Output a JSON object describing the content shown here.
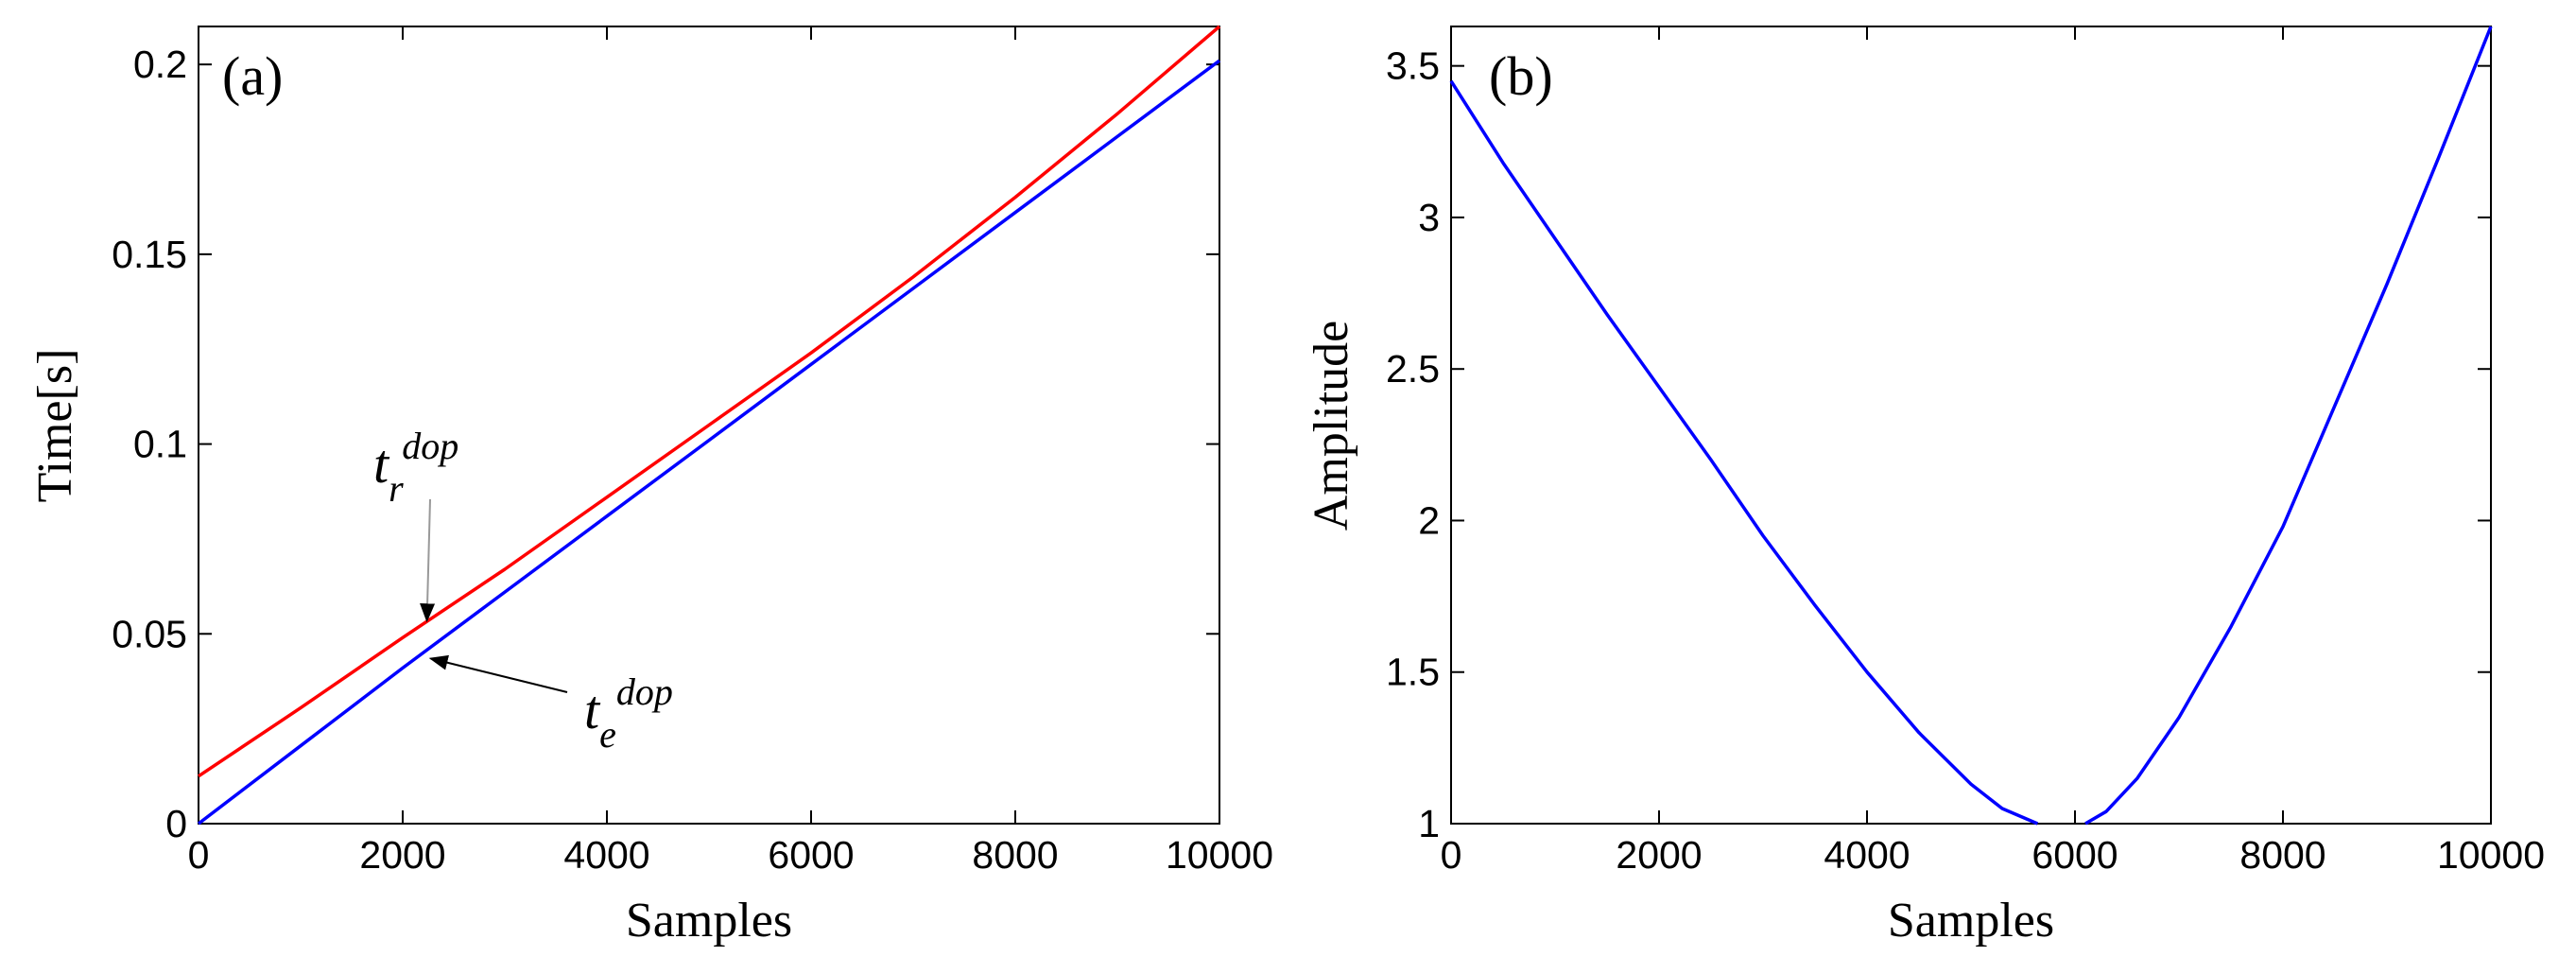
{
  "chart_data": [
    {
      "type": "line",
      "panel_label": "(a)",
      "xlabel": "Samples",
      "ylabel": "Time[s]",
      "xlim": [
        0,
        10000
      ],
      "ylim": [
        0,
        0.21
      ],
      "xticks": [
        0,
        2000,
        4000,
        6000,
        8000,
        10000
      ],
      "xtick_labels": [
        "0",
        "2000",
        "4000",
        "6000",
        "8000",
        "10000"
      ],
      "yticks": [
        0,
        0.05,
        0.1,
        0.15,
        0.2
      ],
      "ytick_labels": [
        "0",
        "0.05",
        "0.1",
        "0.15",
        "0.2"
      ],
      "grid": false,
      "series": [
        {
          "color": "#ff0000",
          "x": [
            0,
            1000,
            2000,
            3000,
            4000,
            5000,
            6000,
            7000,
            8000,
            9000,
            10000
          ],
          "y": [
            0.0125,
            0.0305,
            0.049,
            0.067,
            0.086,
            0.105,
            0.124,
            0.144,
            0.165,
            0.187,
            0.21
          ]
        },
        {
          "color": "#0000ff",
          "x": [
            0,
            1000,
            2000,
            3000,
            4000,
            5000,
            6000,
            7000,
            8000,
            9000,
            10000
          ],
          "y": [
            0.0,
            0.0205,
            0.041,
            0.061,
            0.081,
            0.101,
            0.121,
            0.141,
            0.161,
            0.181,
            0.201
          ]
        }
      ],
      "annotations": [
        {
          "base": "t",
          "sub": "r",
          "sup": "dop",
          "arrow_to": [
            2200,
            0.052
          ]
        },
        {
          "base": "t",
          "sub": "e",
          "sup": "dop",
          "arrow_to": [
            2200,
            0.044
          ]
        }
      ]
    },
    {
      "type": "line",
      "panel_label": "(b)",
      "xlabel": "Samples",
      "ylabel": "Amplitude",
      "xlim": [
        0,
        10000
      ],
      "ylim": [
        1,
        3.63
      ],
      "xticks": [
        0,
        2000,
        4000,
        6000,
        8000,
        10000
      ],
      "xtick_labels": [
        "0",
        "2000",
        "4000",
        "6000",
        "8000",
        "10000"
      ],
      "yticks": [
        1,
        1.5,
        2,
        2.5,
        3,
        3.5
      ],
      "ytick_labels": [
        "1",
        "1.5",
        "2",
        "2.5",
        "3",
        "3.5"
      ],
      "grid": false,
      "series": [
        {
          "color": "#0000ff",
          "x": [
            0,
            500,
            1000,
            1500,
            2000,
            2500,
            3000,
            3500,
            4000,
            4500,
            5000,
            5300,
            5640
          ],
          "y": [
            3.45,
            3.18,
            2.93,
            2.68,
            2.44,
            2.2,
            1.95,
            1.72,
            1.5,
            1.3,
            1.13,
            1.05,
            1.0
          ]
        },
        {
          "color": "#0000ff",
          "x": [
            6100,
            6300,
            6600,
            7000,
            7500,
            8000,
            8500,
            9000,
            9500,
            10000
          ],
          "y": [
            1.0,
            1.04,
            1.15,
            1.35,
            1.65,
            1.98,
            2.38,
            2.78,
            3.2,
            3.63
          ]
        }
      ]
    }
  ]
}
